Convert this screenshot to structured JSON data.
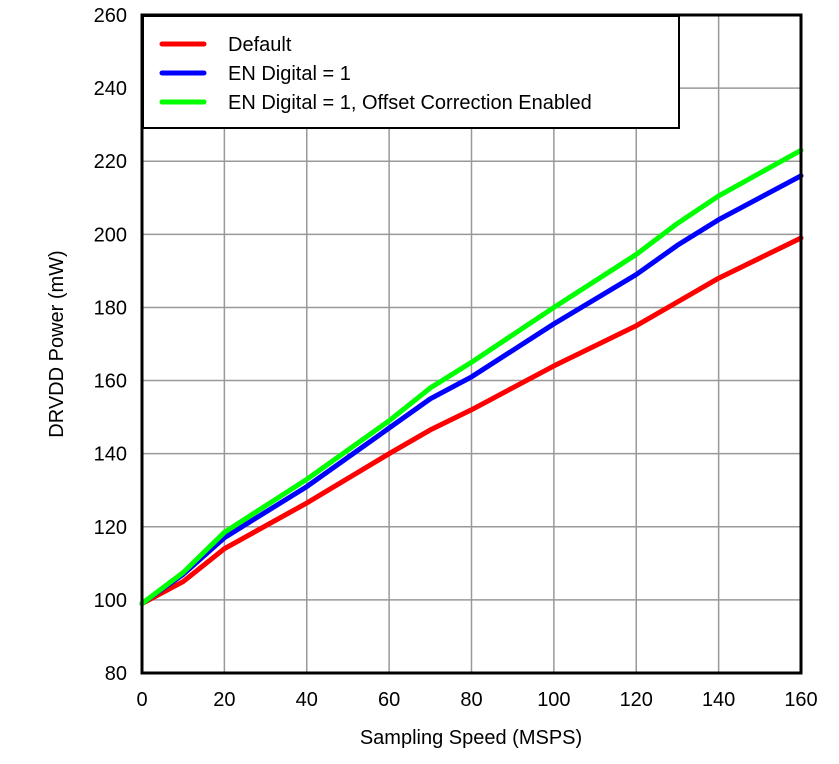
{
  "chart_data": {
    "type": "line",
    "title": "",
    "xlabel": "Sampling Speed (MSPS)",
    "ylabel": "DRVDD Power (mW)",
    "xlim": [
      0,
      160
    ],
    "ylim": [
      80,
      260
    ],
    "xticks": [
      0,
      20,
      40,
      60,
      80,
      100,
      120,
      140,
      160
    ],
    "yticks": [
      80,
      100,
      120,
      140,
      160,
      180,
      200,
      220,
      240,
      260
    ],
    "grid": true,
    "legend_position": "upper-left",
    "x": [
      0,
      10,
      20,
      40,
      60,
      70,
      80,
      100,
      120,
      130,
      140,
      160
    ],
    "series": [
      {
        "name": "Default",
        "color": "#ff0000",
        "values": [
          99,
          105,
          114,
          126.5,
          140,
          146.5,
          152,
          164,
          175,
          181.5,
          188,
          199
        ]
      },
      {
        "name": "EN Digital = 1",
        "color": "#0000ff",
        "values": [
          99,
          107,
          117,
          131,
          147,
          155,
          161,
          175.5,
          189,
          197,
          204,
          216
        ]
      },
      {
        "name": "EN Digital = 1, Offset Correction Enabled",
        "color": "#00ff00",
        "values": [
          99,
          107.5,
          118.5,
          133,
          149,
          158,
          165,
          180,
          194.5,
          203,
          210.5,
          223
        ]
      }
    ]
  },
  "legend": {
    "items": [
      {
        "label": "Default",
        "color": "#ff0000"
      },
      {
        "label": "EN Digital = 1",
        "color": "#0000ff"
      },
      {
        "label": "EN Digital = 1, Offset Correction Enabled",
        "color": "#00ff00"
      }
    ]
  },
  "colors": {
    "grid": "#999999",
    "frame": "#000000"
  }
}
